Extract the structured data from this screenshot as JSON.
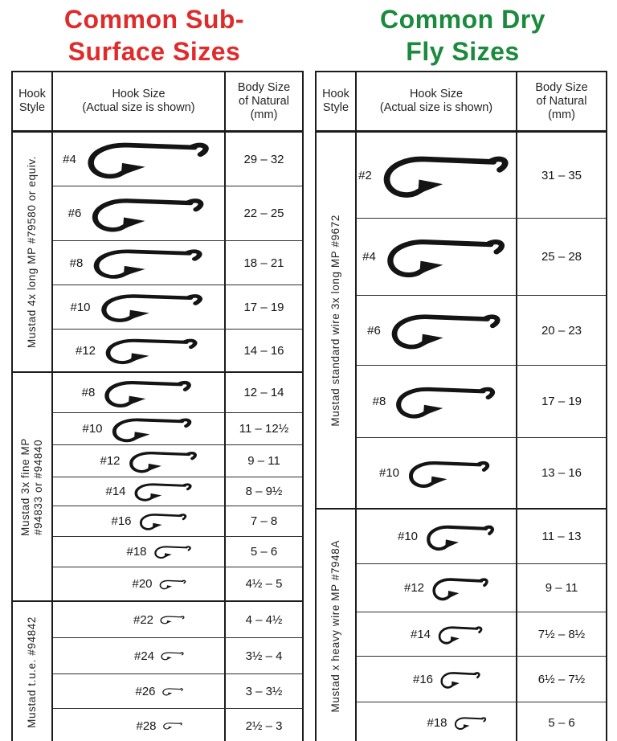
{
  "page_bg": "#ffffff",
  "ink_color": "#1b1b1b",
  "header_labels": {
    "style": "Hook\nStyle",
    "size": "Hook Size\n(Actual size is shown)",
    "body": "Body Size\nof Natural\n(mm)"
  },
  "chart_data": [
    {
      "type": "table",
      "title": "Common Sub-\nSurface Sizes",
      "title_color": "#e02b2b",
      "columns": [
        "Hook Style",
        "Hook Size (Actual size is shown)",
        "Body Size of Natural (mm)"
      ],
      "body_col_width": 95,
      "groups": [
        {
          "hook_style": "Mustad 4x long MP #79580 or equiv.",
          "rows": [
            {
              "hook_size": "#4",
              "body_size_mm": "29 – 32",
              "hw": 165,
              "hh": 54,
              "rh": 67
            },
            {
              "hook_size": "#6",
              "body_size_mm": "22 – 25",
              "hw": 152,
              "hh": 50,
              "rh": 68
            },
            {
              "hook_size": "#8",
              "body_size_mm": "18 – 21",
              "hw": 148,
              "hh": 44,
              "rh": 55
            },
            {
              "hook_size": "#10",
              "body_size_mm": "17 – 19",
              "hw": 138,
              "hh": 42,
              "rh": 55
            },
            {
              "hook_size": "#12",
              "body_size_mm": "14 – 16",
              "hw": 125,
              "hh": 38,
              "rh": 52
            }
          ]
        },
        {
          "hook_style": "Mustad 3x fine MP\n#94833 or #94840",
          "rows": [
            {
              "hook_size": "#8",
              "body_size_mm": "12 – 14",
              "hw": 118,
              "hh": 40,
              "rh": 50
            },
            {
              "hook_size": "#10",
              "body_size_mm": "11 – 12½",
              "hw": 108,
              "hh": 36,
              "rh": 40
            },
            {
              "hook_size": "#12",
              "body_size_mm": "9 – 11",
              "hw": 92,
              "hh": 32,
              "rh": 40
            },
            {
              "hook_size": "#14",
              "body_size_mm": "8 – 9½",
              "hw": 78,
              "hh": 27,
              "rh": 36
            },
            {
              "hook_size": "#16",
              "body_size_mm": "7 – 8",
              "hw": 64,
              "hh": 25,
              "rh": 38
            },
            {
              "hook_size": "#18",
              "body_size_mm": "5 – 6",
              "hw": 50,
              "hh": 19,
              "rh": 38
            },
            {
              "hook_size": "#20",
              "body_size_mm": "4½ – 5",
              "hw": 36,
              "hh": 14,
              "rh": 41
            }
          ]
        },
        {
          "hook_style": "Mustad t.u.e. #94842",
          "rows": [
            {
              "hook_size": "#22",
              "body_size_mm": "4 – 4½",
              "hw": 33,
              "hh": 12,
              "rh": 45
            },
            {
              "hook_size": "#24",
              "body_size_mm": "3½ – 4",
              "hw": 31,
              "hh": 12,
              "rh": 45
            },
            {
              "hook_size": "#26",
              "body_size_mm": "3 – 3½",
              "hw": 28,
              "hh": 11,
              "rh": 43
            },
            {
              "hook_size": "#28",
              "body_size_mm": "2½ – 3",
              "hw": 26,
              "hh": 10,
              "rh": 42
            }
          ]
        }
      ]
    },
    {
      "type": "table",
      "title": "Common Dry\nFly Sizes",
      "title_color": "#1a8a3c",
      "columns": [
        "Hook Style",
        "Hook Size (Actual size is shown)",
        "Body Size of Natural (mm)"
      ],
      "body_col_width": 110,
      "groups": [
        {
          "hook_style": "Mustad standard wire 3x long MP #9672",
          "rows": [
            {
              "hook_size": "#2",
              "body_size_mm": "31 – 35",
              "hw": 170,
              "hh": 62,
              "rh": 107
            },
            {
              "hook_size": "#4",
              "body_size_mm": "25 – 28",
              "hw": 160,
              "hh": 57,
              "rh": 96
            },
            {
              "hook_size": "#6",
              "body_size_mm": "20 – 23",
              "hw": 148,
              "hh": 52,
              "rh": 87
            },
            {
              "hook_size": "#8",
              "body_size_mm": "17 – 19",
              "hw": 135,
              "hh": 47,
              "rh": 90
            },
            {
              "hook_size": "#10",
              "body_size_mm": "13 – 16",
              "hw": 110,
              "hh": 40,
              "rh": 87
            }
          ]
        },
        {
          "hook_style": "Mustad x heavy wire MP #7948A",
          "rows": [
            {
              "hook_size": "#10",
              "body_size_mm": "11 – 13",
              "hw": 92,
              "hh": 38,
              "rh": 68
            },
            {
              "hook_size": "#12",
              "body_size_mm": "9 – 11",
              "hw": 76,
              "hh": 34,
              "rh": 60
            },
            {
              "hook_size": "#14",
              "body_size_mm": "7½ – 8½",
              "hw": 60,
              "hh": 27,
              "rh": 55
            },
            {
              "hook_size": "#16",
              "body_size_mm": "6½ – 7½",
              "hw": 54,
              "hh": 25,
              "rh": 57
            },
            {
              "hook_size": "#18",
              "body_size_mm": "5 – 6",
              "hw": 43,
              "hh": 19,
              "rh": 50
            }
          ]
        }
      ]
    }
  ]
}
